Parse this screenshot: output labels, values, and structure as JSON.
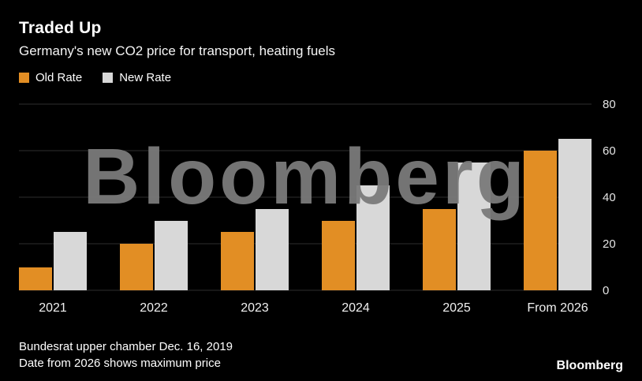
{
  "header": {
    "title": "Traded Up",
    "subtitle": "Germany's new CO2 price for transport, heating fuels"
  },
  "legend": {
    "items": [
      {
        "label": "Old Rate",
        "color": "#e28e24"
      },
      {
        "label": "New Rate",
        "color": "#d8d8d8"
      }
    ]
  },
  "chart_data": {
    "type": "bar",
    "title": "Traded Up",
    "subtitle": "Germany's new CO2 price for transport, heating fuels",
    "categories": [
      "2021",
      "2022",
      "2023",
      "2024",
      "2025",
      "From 2026"
    ],
    "series": [
      {
        "name": "Old Rate",
        "color": "#e28e24",
        "values": [
          10,
          20,
          25,
          30,
          35,
          60
        ]
      },
      {
        "name": "New Rate",
        "color": "#d8d8d8",
        "values": [
          25,
          30,
          35,
          45,
          55,
          65
        ]
      }
    ],
    "xlabel": "",
    "ylabel": "",
    "ylim": [
      0,
      80
    ],
    "yticks": [
      0,
      20,
      40,
      60,
      80
    ],
    "grid": "horizontal",
    "legend_position": "top-left",
    "y_axis_side": "right"
  },
  "watermark": {
    "text": "Bloomberg"
  },
  "footer": {
    "notes": [
      "Bundesrat upper chamber Dec. 16, 2019",
      "Date from 2026 shows maximum price"
    ],
    "brand": "Bloomberg"
  }
}
